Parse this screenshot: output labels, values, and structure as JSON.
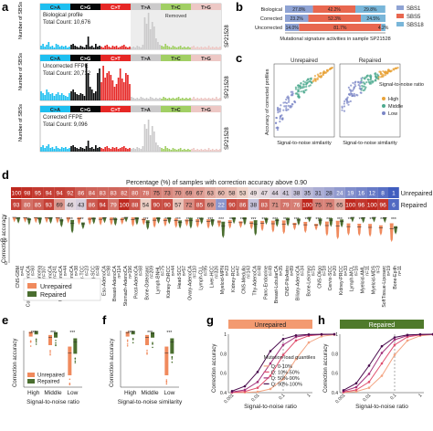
{
  "panel_letters": [
    "a",
    "b",
    "c",
    "d",
    "e",
    "f",
    "g",
    "h"
  ],
  "sbs_headers": [
    "C>A",
    "C>G",
    "C>T",
    "T>A",
    "T>C",
    "T>G"
  ],
  "sbs_colors": [
    "#1ebff0",
    "#050708",
    "#e62725",
    "#cbcacb",
    "#a1cf64",
    "#edc8c5"
  ],
  "sample_id": "SP21528",
  "ylabel_sbs": "Number of SBSs",
  "profiles": [
    {
      "title": "Biological profile",
      "count_label": "Total Count: 10,676",
      "removed": "Removed"
    },
    {
      "title": "Uncorrected FFPE",
      "count_label": "Total Count: 20,712",
      "removed": ""
    },
    {
      "title": "Corrected FFPE",
      "count_label": "Total Count: 9,096",
      "removed": ""
    }
  ],
  "panel_b": {
    "xlabel": "Mutational signature activities in sample SP21528",
    "rows": [
      "Biological",
      "Corrected",
      "Uncorrected"
    ],
    "legend": [
      "SBS1",
      "SBS5",
      "SBS18"
    ],
    "colors": [
      "#8fa3d4",
      "#e8674f",
      "#79b6d9"
    ],
    "values": [
      [
        27.8,
        42.2,
        29.8
      ],
      [
        23.2,
        52.3,
        24.5
      ],
      [
        14.0,
        81.7,
        4.2
      ]
    ],
    "labels": [
      [
        "27.8%",
        "42.2%",
        "29.8%"
      ],
      [
        "23.2%",
        "52.3%",
        "24.5%"
      ],
      [
        "14.0%",
        "81.7%",
        "4.2%"
      ]
    ]
  },
  "panel_c": {
    "ylabel": "Accuracy of corrected profiles",
    "xlabel": "Signal-to-noise similarity",
    "titles": [
      "Unrepaired",
      "Repaired"
    ],
    "legend_title": "Signal-to-noise ratio",
    "legend": [
      "High",
      "Middle",
      "Low"
    ],
    "colors": [
      "#e8a33a",
      "#4daa8f",
      "#7b86c6"
    ]
  },
  "panel_d": {
    "title": "Percentage (%) of samples with correction accuracy above 0.90",
    "row_labels": [
      "Unrepaired",
      "Repaired"
    ],
    "unrepaired": [
      "100",
      "98",
      "95",
      "94",
      "94",
      "92",
      "86",
      "84",
      "83",
      "83",
      "82",
      "80",
      "78",
      "75",
      "73",
      "70",
      "69",
      "67",
      "63",
      "60",
      "58",
      "53",
      "49",
      "47",
      "44",
      "41",
      "38",
      "35",
      "31",
      "28",
      "24",
      "19",
      "16",
      "12",
      "8",
      "1"
    ],
    "repaired": [
      "93",
      "80",
      "85",
      "93",
      "69",
      "46",
      "43",
      "86",
      "94",
      "79",
      "100",
      "88",
      "54",
      "90",
      "90",
      "57",
      "72",
      "85",
      "69",
      "22",
      "90",
      "86",
      "38",
      "83",
      "71",
      "79",
      "76",
      "100",
      "75",
      "75",
      "65",
      "100",
      "96",
      "100",
      "96",
      "6"
    ],
    "ylabel": "Correction accuracy",
    "categories": [
      "CNS-GBM",
      "ColoRect-AdenoCA",
      "Skin-Melanoma",
      "Panc-AdenoCA",
      "Uterus-AdenoCA",
      "Lung-AdenoCA",
      "Bladder-TCC",
      "Lung-SCC",
      "Eso-AdenoCA",
      "Breast-AdenoCA",
      "Stomach-AdenoCA",
      "Prost-AdenoCA",
      "Bone-Osteosarc",
      "Lymph-BNHL",
      "Kidney-ChRCC",
      "Head-SCC",
      "Ovary-AdenoCA",
      "Lymph-CLL",
      "Liver-HCC",
      "Myeloid-MPN",
      "Kidney-RCC",
      "CNS-Medullo",
      "Thy-AdenoCA",
      "Panc-Endocrine",
      "Breast-LobularCA",
      "CNS-PiloAstro",
      "Biliary-AdenoCA",
      "Bone-Leiomyo",
      "CNS-Oligo",
      "Cervix-SCC",
      "Kidney-PRCC",
      "Lymph-MCL",
      "Myeloid-AML",
      "Myeloid-MDS",
      "SoftTissue-Liposarc",
      "Bone-Epith"
    ],
    "n_labels": [
      "n=41",
      "n=60",
      "n=107",
      "n=241",
      "n=44",
      "n=38",
      "n=23",
      "n=48",
      "n=98",
      "n=114",
      "n=196",
      "n=68",
      "n=209",
      "n=75",
      "n=44",
      "n=57",
      "n=110",
      "n=95",
      "n=326",
      "n=23",
      "n=47",
      "n=143",
      "n=48",
      "n=49",
      "n=35",
      "n=89",
      "n=34",
      "n=15",
      "n=18",
      "n=20",
      "n=33",
      "n=16",
      "n=11",
      "n=3",
      "n=19",
      "n=11"
    ],
    "yticks": [
      "1",
      "0.5",
      "0"
    ],
    "legend": [
      "Unrepaired",
      "Repaired"
    ],
    "colors": [
      "#f08a5d",
      "#4a6e2f"
    ],
    "stars": "***"
  },
  "panel_e": {
    "ylabel": "Correction accuracy",
    "xlabel": "Signal-to-noise ratio",
    "categories": [
      "High",
      "Middle",
      "Low"
    ],
    "legend": [
      "Unrepaired",
      "Repaired"
    ]
  },
  "panel_f": {
    "ylabel": "Correction accuracy",
    "xlabel": "Signal-to-noise similarity",
    "categories": [
      "High",
      "Middle",
      "Low"
    ]
  },
  "panel_g": {
    "title": "Unrepaired",
    "ylabel": "Correction accuracy",
    "xlabel": "Signal-to-noise ratio",
    "xticks": [
      "0.001",
      "0.01",
      "0.1",
      "1"
    ],
    "yticks": [
      "1",
      "0.8",
      "0.6",
      "0.4"
    ],
    "legend_title": "Mutation load quantiles",
    "legend": [
      "Q: 0-10%",
      "Q: 10%-50%",
      "Q: 50%-90%",
      "Q: 90%-100%"
    ],
    "colors": [
      "#f3a482",
      "#e04f6e",
      "#a2307a",
      "#4a0c4e"
    ],
    "title_color": "#f39a70"
  },
  "panel_h": {
    "title": "Repaired",
    "ylabel": "Correction accuracy",
    "xlabel": "Signal-to-noise ratio",
    "xticks": [
      "0.001",
      "0.01",
      "0.1",
      "1"
    ],
    "yticks": [
      "1",
      "0.8",
      "0.6",
      "0.4"
    ],
    "title_color": "#4f7a2b"
  }
}
